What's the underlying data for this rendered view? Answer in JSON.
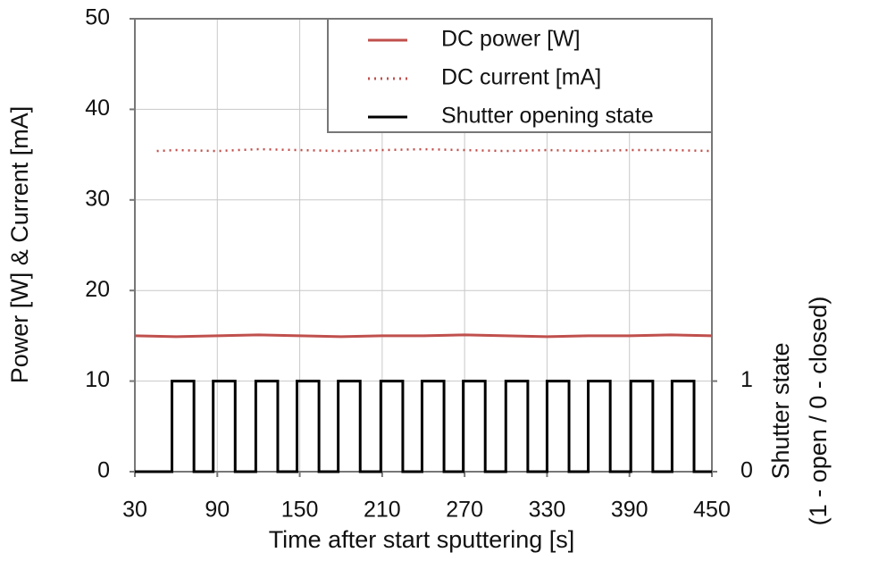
{
  "chart_data": {
    "type": "line",
    "xlabel": "Time after start sputtering [s]",
    "ylabel": "Power [W] & Current [mA]",
    "y2label": [
      "Shutter state",
      "(1 - open / 0 - closed)"
    ],
    "xlim": [
      30,
      450
    ],
    "xticks": [
      30,
      90,
      150,
      210,
      270,
      330,
      390,
      450
    ],
    "ylim": [
      0,
      50
    ],
    "yticks": [
      0,
      10,
      20,
      30,
      40,
      50
    ],
    "y2lim": [
      0,
      5
    ],
    "y2ticks": [
      0,
      1
    ],
    "grid": true,
    "legend": "upper right",
    "series": [
      {
        "name": "DC power [W]",
        "color": "#c0504d",
        "style": "solid",
        "x": [
          30,
          60,
          90,
          120,
          150,
          180,
          210,
          240,
          270,
          300,
          330,
          360,
          390,
          420,
          450
        ],
        "values": [
          15.0,
          14.9,
          15.0,
          15.1,
          15.0,
          14.9,
          15.0,
          15.0,
          15.1,
          15.0,
          14.9,
          15.0,
          15.0,
          15.1,
          15.0
        ]
      },
      {
        "name": "DC current [mA]",
        "color": "#c0504d",
        "style": "dotted",
        "x": [
          46,
          60,
          90,
          120,
          150,
          180,
          210,
          240,
          270,
          300,
          330,
          360,
          390,
          420,
          450
        ],
        "values": [
          35.4,
          35.5,
          35.4,
          35.6,
          35.5,
          35.4,
          35.5,
          35.6,
          35.5,
          35.4,
          35.5,
          35.4,
          35.5,
          35.5,
          35.4
        ]
      },
      {
        "name": "Shutter opening state",
        "color": "#000000",
        "style": "solid",
        "axis": "y2",
        "x": [
          30,
          57,
          57,
          73,
          73,
          87,
          87,
          103,
          103,
          118,
          118,
          134,
          134,
          148,
          148,
          164,
          164,
          178,
          178,
          194,
          194,
          209,
          209,
          225,
          225,
          239,
          239,
          255,
          255,
          269,
          269,
          285,
          285,
          300,
          300,
          316,
          316,
          330,
          330,
          346,
          346,
          360,
          360,
          376,
          376,
          391,
          391,
          407,
          407,
          421,
          421,
          437,
          437,
          450
        ],
        "values": [
          0,
          0,
          1,
          1,
          0,
          0,
          1,
          1,
          0,
          0,
          1,
          1,
          0,
          0,
          1,
          1,
          0,
          0,
          1,
          1,
          0,
          0,
          1,
          1,
          0,
          0,
          1,
          1,
          0,
          0,
          1,
          1,
          0,
          0,
          1,
          1,
          0,
          0,
          1,
          1,
          0,
          0,
          1,
          1,
          0,
          0,
          1,
          1,
          0,
          0,
          1,
          1,
          0,
          0
        ]
      }
    ]
  }
}
